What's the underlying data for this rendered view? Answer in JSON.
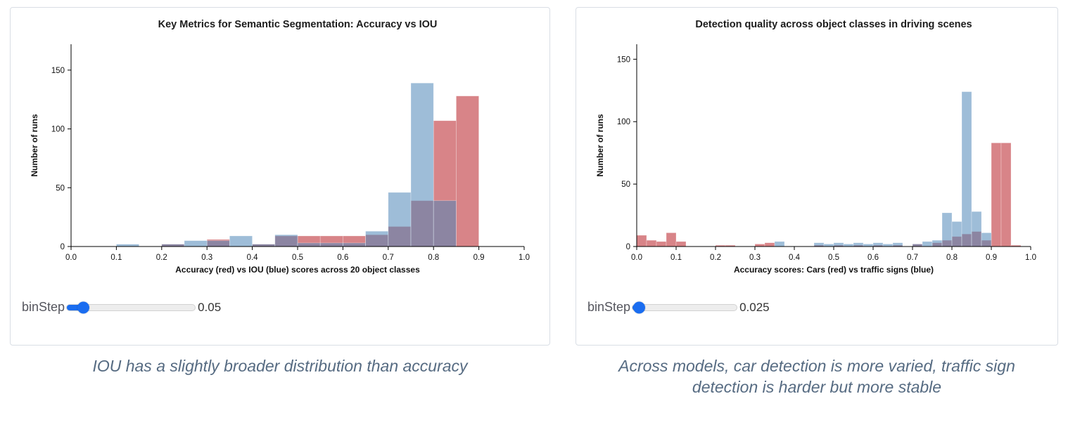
{
  "panels": [
    {
      "caption": "IOU has a slightly broader distribution than accuracy",
      "slider": {
        "label": "binStep",
        "value": "0.05",
        "fraction": 0.125
      }
    },
    {
      "caption": "Across models, car detection is more varied, traffic sign detection is harder but more stable",
      "slider": {
        "label": "binStep",
        "value": "0.025",
        "fraction": 0.06
      }
    }
  ],
  "chart_data": [
    {
      "type": "bar",
      "subtype": "overlaid-histogram",
      "title": "Key Metrics for Semantic Segmentation: Accuracy vs IOU",
      "xlabel": "Accuracy (red) vs IOU (blue) scores across 20 object classes",
      "ylabel": "Number of runs",
      "x_domain": [
        0,
        1
      ],
      "y_domain": [
        0,
        172
      ],
      "x_ticks": [
        0.0,
        0.1,
        0.2,
        0.3,
        0.4,
        0.5,
        0.6,
        0.7,
        0.8,
        0.9,
        1.0
      ],
      "y_ticks": [
        0,
        50,
        100,
        150
      ],
      "bin_width": 0.05,
      "grid": false,
      "legend": "none (colors described in axis label)",
      "series": [
        {
          "name": "Accuracy (red)",
          "color": "#c0393f",
          "opacity": 0.62,
          "bins": [
            [
              0.2,
              2
            ],
            [
              0.3,
              6
            ],
            [
              0.4,
              2
            ],
            [
              0.45,
              9
            ],
            [
              0.5,
              9
            ],
            [
              0.55,
              9
            ],
            [
              0.6,
              9
            ],
            [
              0.65,
              10
            ],
            [
              0.7,
              17
            ],
            [
              0.75,
              39
            ],
            [
              0.8,
              107
            ],
            [
              0.85,
              128
            ]
          ]
        },
        {
          "name": "IOU (blue)",
          "color": "#4f86b8",
          "opacity": 0.55,
          "bins": [
            [
              0.1,
              2
            ],
            [
              0.2,
              2
            ],
            [
              0.25,
              5
            ],
            [
              0.3,
              5
            ],
            [
              0.35,
              9
            ],
            [
              0.4,
              2
            ],
            [
              0.45,
              10
            ],
            [
              0.5,
              3
            ],
            [
              0.55,
              3
            ],
            [
              0.6,
              3
            ],
            [
              0.65,
              13
            ],
            [
              0.7,
              46
            ],
            [
              0.75,
              139
            ],
            [
              0.8,
              39
            ]
          ]
        }
      ]
    },
    {
      "type": "bar",
      "subtype": "overlaid-histogram",
      "title": "Detection quality across object classes in driving scenes",
      "xlabel": "Accuracy scores: Cars (red) vs traffic signs (blue)",
      "ylabel": "Number of runs",
      "x_domain": [
        0,
        1
      ],
      "y_domain": [
        0,
        162
      ],
      "x_ticks": [
        0.0,
        0.1,
        0.2,
        0.3,
        0.4,
        0.5,
        0.6,
        0.7,
        0.8,
        0.9,
        1.0
      ],
      "y_ticks": [
        0,
        50,
        100,
        150
      ],
      "bin_width": 0.025,
      "grid": false,
      "legend": "none (colors described in axis label)",
      "series": [
        {
          "name": "Cars (red)",
          "color": "#c0393f",
          "opacity": 0.62,
          "bins": [
            [
              0.0,
              9
            ],
            [
              0.025,
              5
            ],
            [
              0.05,
              4
            ],
            [
              0.075,
              11
            ],
            [
              0.1,
              4
            ],
            [
              0.2,
              1
            ],
            [
              0.225,
              1
            ],
            [
              0.3,
              2
            ],
            [
              0.325,
              3
            ],
            [
              0.45,
              1
            ],
            [
              0.5,
              1
            ],
            [
              0.55,
              1
            ],
            [
              0.6,
              1
            ],
            [
              0.65,
              1
            ],
            [
              0.7,
              2
            ],
            [
              0.75,
              3
            ],
            [
              0.775,
              5
            ],
            [
              0.8,
              8
            ],
            [
              0.825,
              10
            ],
            [
              0.85,
              12
            ],
            [
              0.875,
              5
            ],
            [
              0.9,
              83
            ],
            [
              0.925,
              83
            ],
            [
              0.95,
              1
            ]
          ]
        },
        {
          "name": "Traffic signs (blue)",
          "color": "#4f86b8",
          "opacity": 0.55,
          "bins": [
            [
              0.35,
              4
            ],
            [
              0.45,
              3
            ],
            [
              0.475,
              2
            ],
            [
              0.5,
              3
            ],
            [
              0.525,
              2
            ],
            [
              0.55,
              3
            ],
            [
              0.575,
              2
            ],
            [
              0.6,
              3
            ],
            [
              0.625,
              2
            ],
            [
              0.65,
              3
            ],
            [
              0.7,
              2
            ],
            [
              0.725,
              4
            ],
            [
              0.75,
              5
            ],
            [
              0.775,
              27
            ],
            [
              0.8,
              20
            ],
            [
              0.825,
              124
            ],
            [
              0.85,
              28
            ],
            [
              0.875,
              11
            ]
          ]
        }
      ]
    }
  ]
}
